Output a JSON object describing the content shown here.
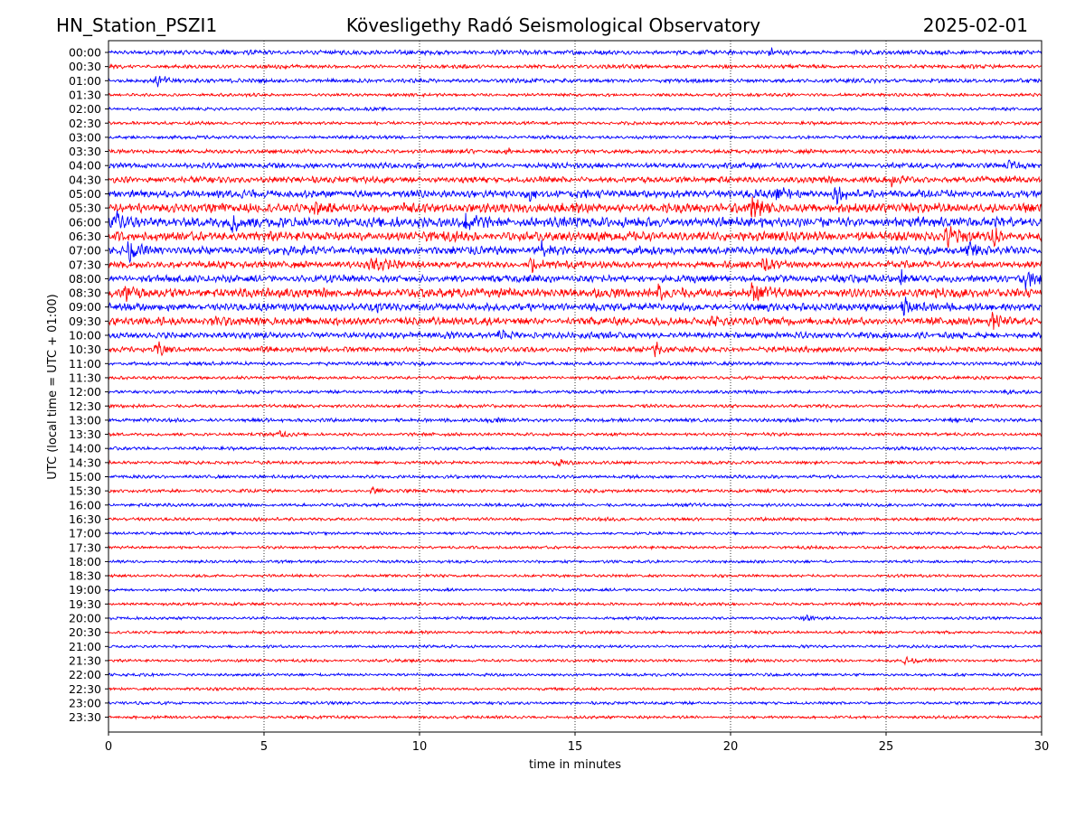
{
  "chart_data": {
    "type": "line",
    "title_left": "HN_Station_PSZI1",
    "title": "Kövesligethy Radó Seismological Observatory",
    "title_right": "2025-02-01",
    "xlabel": "time in minutes",
    "ylabel": "UTC (local time = UTC + 01:00)",
    "xlim": [
      0,
      30
    ],
    "xticks": [
      "0",
      "5",
      "10",
      "15",
      "20",
      "25",
      "30"
    ],
    "grid": "vertical dotted at 5-minute ticks",
    "rows": [
      {
        "label": "00:00",
        "color": "#0000ff",
        "amp": 2.2,
        "events": [
          {
            "t": 21.3,
            "a": 3
          }
        ]
      },
      {
        "label": "00:30",
        "color": "#ff0000",
        "amp": 1.8,
        "events": []
      },
      {
        "label": "01:00",
        "color": "#0000ff",
        "amp": 2.0,
        "events": [
          {
            "t": 1.6,
            "a": 5
          }
        ]
      },
      {
        "label": "01:30",
        "color": "#ff0000",
        "amp": 1.5,
        "events": []
      },
      {
        "label": "02:00",
        "color": "#0000ff",
        "amp": 1.5,
        "events": []
      },
      {
        "label": "02:30",
        "color": "#ff0000",
        "amp": 1.6,
        "events": []
      },
      {
        "label": "03:00",
        "color": "#0000ff",
        "amp": 1.6,
        "events": []
      },
      {
        "label": "03:30",
        "color": "#ff0000",
        "amp": 2.0,
        "events": [
          {
            "t": 12.8,
            "a": 3
          }
        ]
      },
      {
        "label": "04:00",
        "color": "#0000ff",
        "amp": 2.6,
        "events": [
          {
            "t": 29.0,
            "a": 5
          }
        ]
      },
      {
        "label": "04:30",
        "color": "#ff0000",
        "amp": 3.0,
        "events": [
          {
            "t": 25.2,
            "a": 6
          }
        ]
      },
      {
        "label": "05:00",
        "color": "#0000ff",
        "amp": 3.8,
        "events": [
          {
            "t": 13.5,
            "a": 6
          },
          {
            "t": 21.5,
            "a": 7
          },
          {
            "t": 23.4,
            "a": 7
          }
        ]
      },
      {
        "label": "05:30",
        "color": "#ff0000",
        "amp": 4.5,
        "events": [
          {
            "t": 6.5,
            "a": 7
          },
          {
            "t": 20.7,
            "a": 8
          }
        ]
      },
      {
        "label": "06:00",
        "color": "#0000ff",
        "amp": 5.0,
        "events": [
          {
            "t": 0.3,
            "a": 8
          },
          {
            "t": 4.0,
            "a": 8
          },
          {
            "t": 11.5,
            "a": 10
          }
        ]
      },
      {
        "label": "06:30",
        "color": "#ff0000",
        "amp": 4.5,
        "events": [
          {
            "t": 27.0,
            "a": 9
          },
          {
            "t": 28.5,
            "a": 8
          }
        ]
      },
      {
        "label": "07:00",
        "color": "#0000ff",
        "amp": 4.0,
        "events": [
          {
            "t": 0.7,
            "a": 8
          },
          {
            "t": 13.9,
            "a": 7
          },
          {
            "t": 27.7,
            "a": 6
          }
        ]
      },
      {
        "label": "07:30",
        "color": "#ff0000",
        "amp": 3.5,
        "events": [
          {
            "t": 8.5,
            "a": 7
          },
          {
            "t": 13.6,
            "a": 7
          },
          {
            "t": 21.1,
            "a": 6
          }
        ]
      },
      {
        "label": "08:00",
        "color": "#0000ff",
        "amp": 3.5,
        "events": [
          {
            "t": 25.5,
            "a": 7
          },
          {
            "t": 29.5,
            "a": 7
          }
        ]
      },
      {
        "label": "08:30",
        "color": "#ff0000",
        "amp": 4.5,
        "events": [
          {
            "t": 0.5,
            "a": 8
          },
          {
            "t": 17.7,
            "a": 8
          },
          {
            "t": 20.7,
            "a": 8
          }
        ]
      },
      {
        "label": "09:00",
        "color": "#0000ff",
        "amp": 3.8,
        "events": [
          {
            "t": 8.5,
            "a": 7
          },
          {
            "t": 25.6,
            "a": 8
          }
        ]
      },
      {
        "label": "09:30",
        "color": "#ff0000",
        "amp": 3.8,
        "events": [
          {
            "t": 3.4,
            "a": 6
          },
          {
            "t": 19.4,
            "a": 6
          },
          {
            "t": 28.4,
            "a": 7
          }
        ]
      },
      {
        "label": "10:00",
        "color": "#0000ff",
        "amp": 3.0,
        "events": [
          {
            "t": 12.6,
            "a": 5
          }
        ]
      },
      {
        "label": "10:30",
        "color": "#ff0000",
        "amp": 2.6,
        "events": [
          {
            "t": 1.6,
            "a": 6
          },
          {
            "t": 17.6,
            "a": 7
          }
        ]
      },
      {
        "label": "11:00",
        "color": "#0000ff",
        "amp": 1.8,
        "events": []
      },
      {
        "label": "11:30",
        "color": "#ff0000",
        "amp": 1.6,
        "events": []
      },
      {
        "label": "12:00",
        "color": "#0000ff",
        "amp": 1.6,
        "events": [
          {
            "t": 28.9,
            "a": 3
          }
        ]
      },
      {
        "label": "12:30",
        "color": "#ff0000",
        "amp": 1.6,
        "events": []
      },
      {
        "label": "13:00",
        "color": "#0000ff",
        "amp": 1.8,
        "events": [
          {
            "t": 12.3,
            "a": 3
          }
        ]
      },
      {
        "label": "13:30",
        "color": "#ff0000",
        "amp": 1.6,
        "events": [
          {
            "t": 5.5,
            "a": 3
          }
        ]
      },
      {
        "label": "14:00",
        "color": "#0000ff",
        "amp": 1.6,
        "events": []
      },
      {
        "label": "14:30",
        "color": "#ff0000",
        "amp": 1.6,
        "events": [
          {
            "t": 14.4,
            "a": 3
          }
        ]
      },
      {
        "label": "15:00",
        "color": "#0000ff",
        "amp": 1.6,
        "events": []
      },
      {
        "label": "15:30",
        "color": "#ff0000",
        "amp": 1.6,
        "events": [
          {
            "t": 8.5,
            "a": 3
          }
        ]
      },
      {
        "label": "16:00",
        "color": "#0000ff",
        "amp": 1.6,
        "events": []
      },
      {
        "label": "16:30",
        "color": "#ff0000",
        "amp": 1.6,
        "events": []
      },
      {
        "label": "17:00",
        "color": "#0000ff",
        "amp": 1.4,
        "events": []
      },
      {
        "label": "17:30",
        "color": "#ff0000",
        "amp": 1.4,
        "events": []
      },
      {
        "label": "18:00",
        "color": "#0000ff",
        "amp": 1.4,
        "events": []
      },
      {
        "label": "18:30",
        "color": "#ff0000",
        "amp": 1.4,
        "events": []
      },
      {
        "label": "19:00",
        "color": "#0000ff",
        "amp": 1.4,
        "events": []
      },
      {
        "label": "19:30",
        "color": "#ff0000",
        "amp": 1.4,
        "events": []
      },
      {
        "label": "20:00",
        "color": "#0000ff",
        "amp": 1.4,
        "events": [
          {
            "t": 22.4,
            "a": 3
          }
        ]
      },
      {
        "label": "20:30",
        "color": "#ff0000",
        "amp": 1.4,
        "events": []
      },
      {
        "label": "21:00",
        "color": "#0000ff",
        "amp": 1.4,
        "events": []
      },
      {
        "label": "21:30",
        "color": "#ff0000",
        "amp": 1.4,
        "events": [
          {
            "t": 25.6,
            "a": 3
          }
        ]
      },
      {
        "label": "22:00",
        "color": "#0000ff",
        "amp": 1.4,
        "events": []
      },
      {
        "label": "22:30",
        "color": "#ff0000",
        "amp": 1.4,
        "events": []
      },
      {
        "label": "23:00",
        "color": "#0000ff",
        "amp": 1.4,
        "events": []
      },
      {
        "label": "23:30",
        "color": "#ff0000",
        "amp": 1.4,
        "events": []
      }
    ]
  }
}
